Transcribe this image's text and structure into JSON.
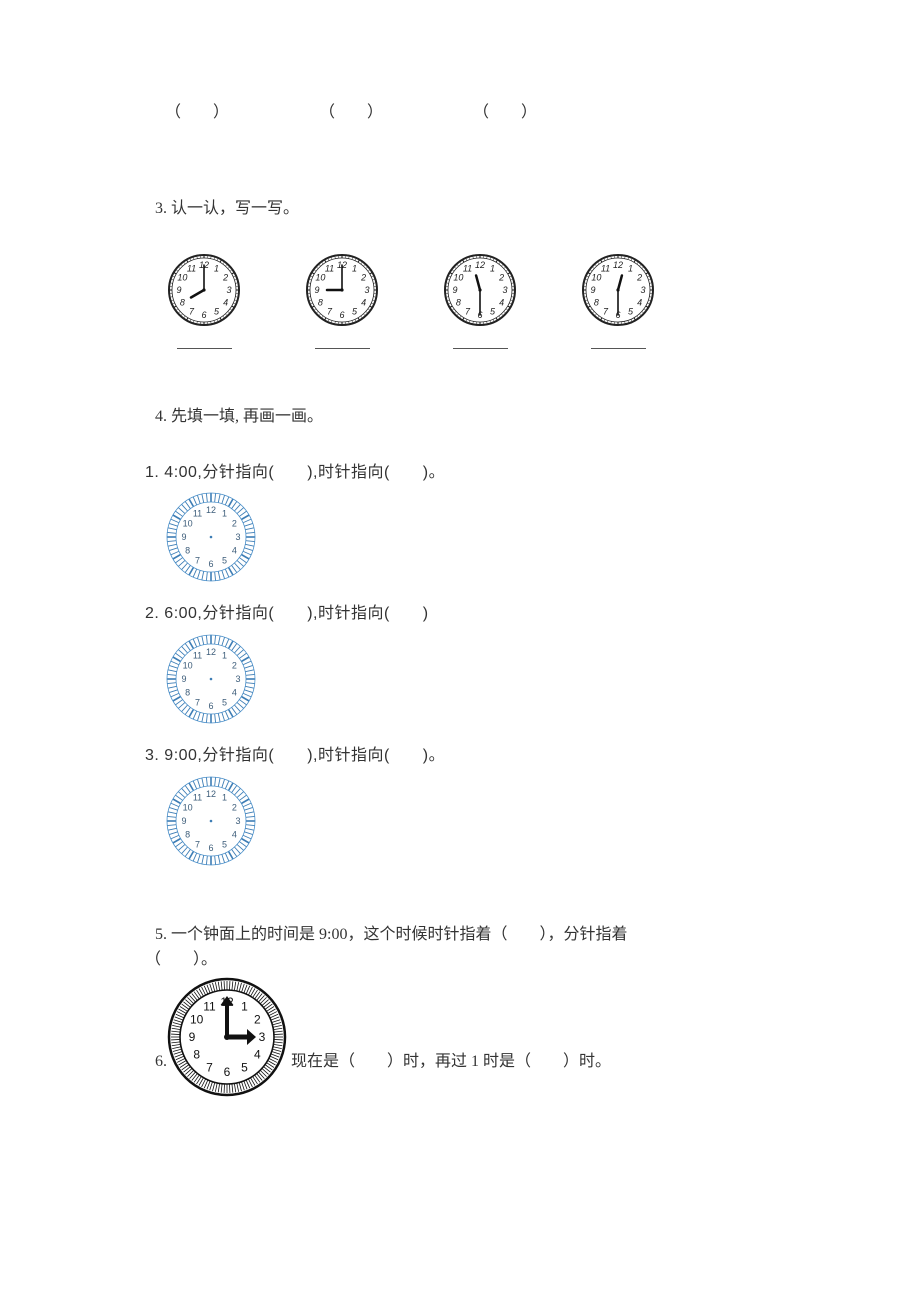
{
  "blanks_top": [
    "（　　）",
    "（　　）",
    "（　　）"
  ],
  "q3": {
    "title": "3. 认一认，写一写。",
    "clocks": [
      {
        "hour": 8,
        "minute": 0,
        "ringStyle": "plain"
      },
      {
        "hour": 9,
        "minute": 0,
        "ringStyle": "plain"
      },
      {
        "hour": 11,
        "minute": 30,
        "ringStyle": "plain"
      },
      {
        "hour": 12,
        "minute": 30,
        "ringStyle": "plain"
      }
    ]
  },
  "q4": {
    "title": "4. 先填一填, 再画一画。",
    "items": [
      {
        "label": "1. 4:00,分针指向(　　),时针指向(　　)。"
      },
      {
        "label": "2. 6:00,分针指向(　　),时针指向(　　)"
      },
      {
        "label": "3. 9:00,分针指向(　　),时针指向(　　)。"
      }
    ],
    "blueClock": {
      "borderColor": "#4a8fc9",
      "tickColor": "#3d7db5",
      "numberColor": "#3d5d7a",
      "dotColor": "#3d7db5"
    }
  },
  "q5": {
    "line1": "5. 一个钟面上的时间是 9:00，这个时候时针指着（　　），分针指着",
    "line2": "（　　）。"
  },
  "q6": {
    "prefix": "6.",
    "text": " 现在是（　　）时，再过 1 时是（　　）时。",
    "clock": {
      "hour": 3,
      "minute": 0
    }
  },
  "colors": {
    "text": "#333333",
    "clockStroke": "#222222",
    "clockFill": "#ffffff"
  }
}
